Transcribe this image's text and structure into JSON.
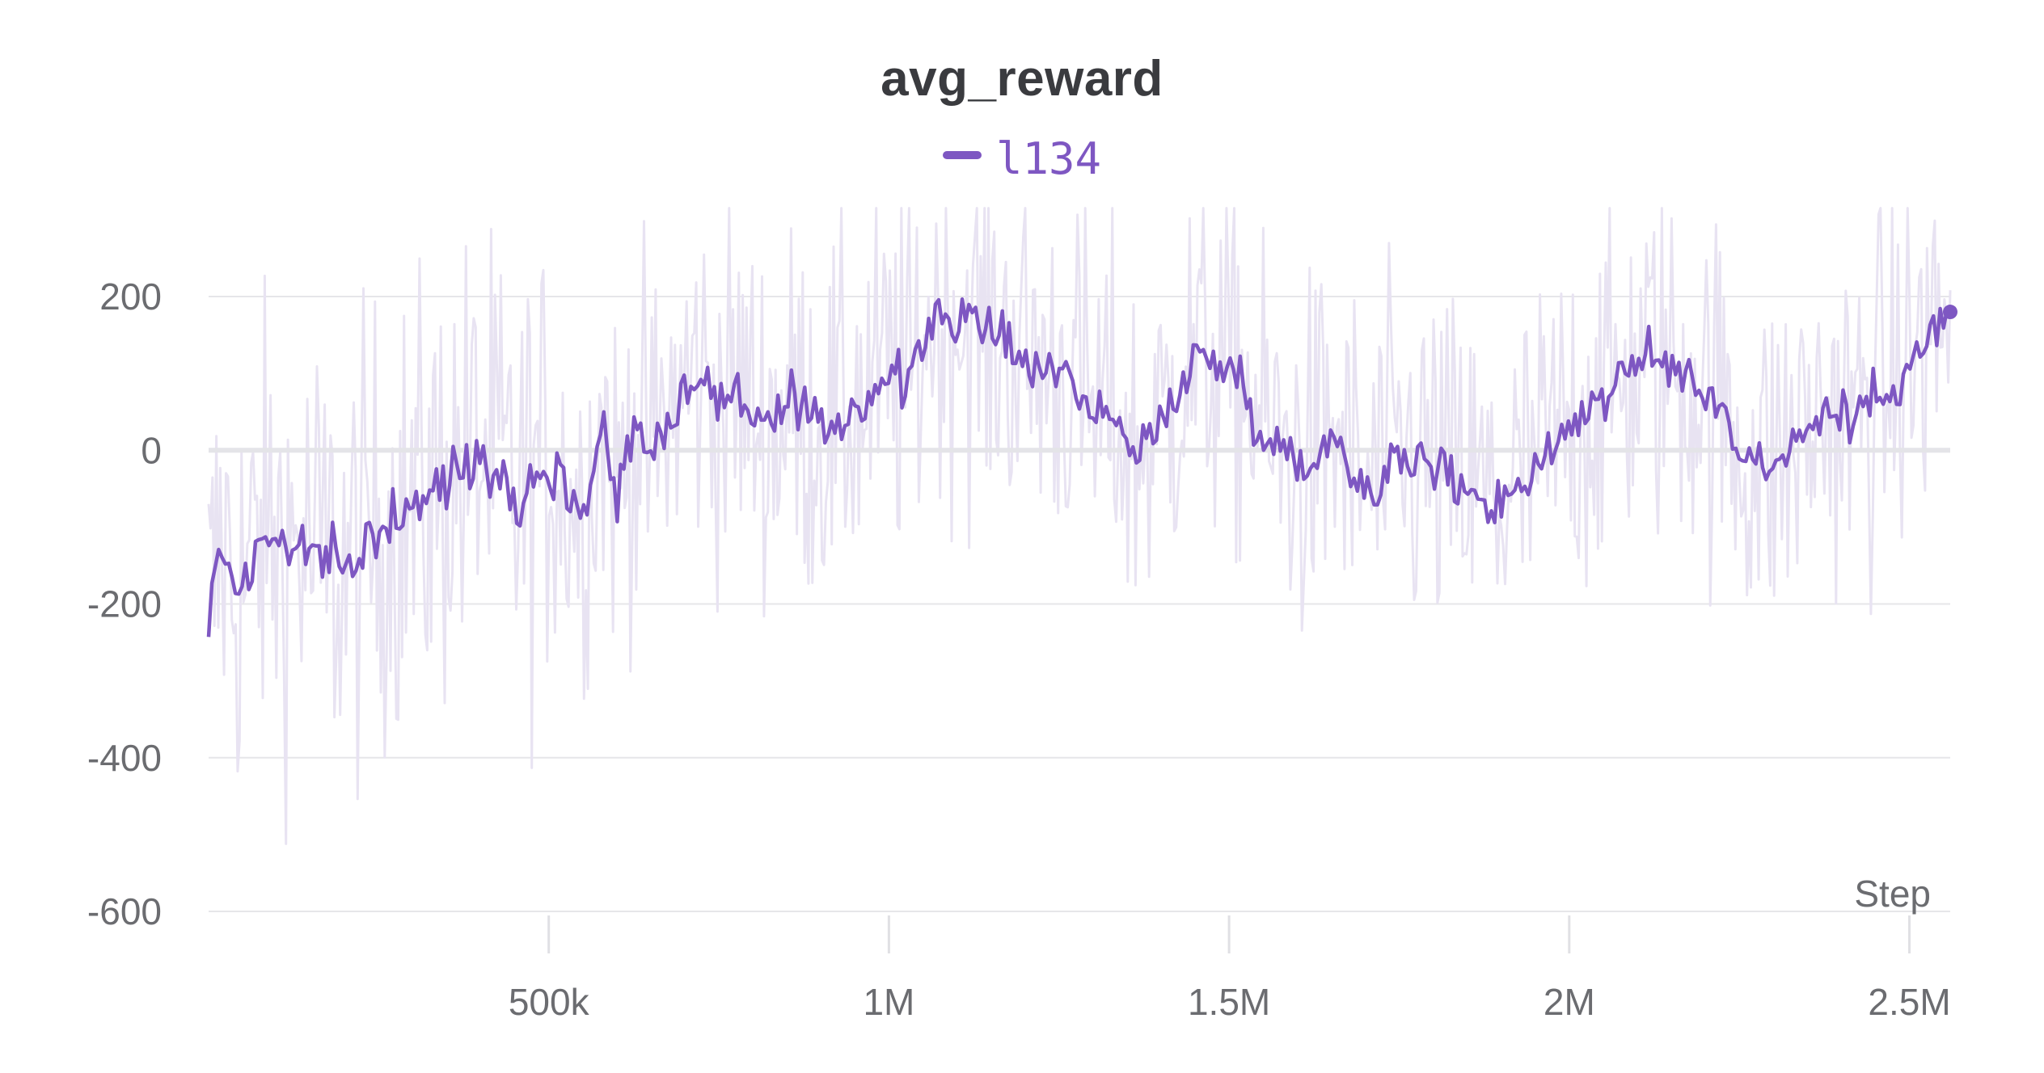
{
  "chart_data": {
    "type": "line",
    "title": "avg_reward",
    "xlabel": "Step",
    "ylabel": "",
    "xlim": [
      0,
      2560000
    ],
    "ylim": [
      -630,
      330
    ],
    "x_ticks": [
      {
        "value": 500000,
        "label": "500k"
      },
      {
        "value": 1000000,
        "label": "1M"
      },
      {
        "value": 1500000,
        "label": "1.5M"
      },
      {
        "value": 2000000,
        "label": "2M"
      },
      {
        "value": 2500000,
        "label": "2.5M"
      }
    ],
    "y_ticks": [
      {
        "value": 200,
        "label": "200"
      },
      {
        "value": 0,
        "label": "0"
      },
      {
        "value": -200,
        "label": "-200"
      },
      {
        "value": -400,
        "label": "-400"
      },
      {
        "value": -600,
        "label": "-600"
      }
    ],
    "grid": true,
    "legend_position": "top-center",
    "series": [
      {
        "name": "l134",
        "color": "#7e57c2",
        "raw_color": "#e8e3f2",
        "smoothed_x": [
          0,
          20000,
          40000,
          60000,
          80000,
          100000,
          150000,
          200000,
          250000,
          300000,
          350000,
          400000,
          450000,
          500000,
          550000,
          580000,
          600000,
          620000,
          650000,
          700000,
          720000,
          750000,
          780000,
          800000,
          830000,
          860000,
          900000,
          940000,
          980000,
          1000000,
          1030000,
          1060000,
          1090000,
          1120000,
          1150000,
          1180000,
          1200000,
          1250000,
          1280000,
          1300000,
          1330000,
          1360000,
          1400000,
          1430000,
          1460000,
          1500000,
          1540000,
          1570000,
          1610000,
          1650000,
          1700000,
          1750000,
          1800000,
          1850000,
          1900000,
          1940000,
          1970000,
          2000000,
          2030000,
          2060000,
          2090000,
          2120000,
          2150000,
          2190000,
          2220000,
          2260000,
          2300000,
          2340000,
          2380000,
          2420000,
          2460000,
          2500000,
          2540000,
          2560000
        ],
        "smoothed_y": [
          -220,
          -120,
          -180,
          -160,
          -110,
          -120,
          -130,
          -160,
          -100,
          -80,
          -40,
          0,
          -60,
          -20,
          -80,
          30,
          -50,
          20,
          0,
          80,
          100,
          60,
          80,
          50,
          30,
          60,
          20,
          50,
          80,
          100,
          80,
          170,
          180,
          160,
          150,
          140,
          120,
          100,
          90,
          40,
          50,
          -10,
          30,
          100,
          120,
          110,
          50,
          0,
          -20,
          20,
          -50,
          -10,
          -20,
          -50,
          -70,
          -30,
          0,
          30,
          60,
          80,
          100,
          120,
          110,
          90,
          60,
          -10,
          -20,
          20,
          50,
          40,
          80,
          110,
          160,
          180
        ],
        "final_value": 180
      }
    ]
  }
}
